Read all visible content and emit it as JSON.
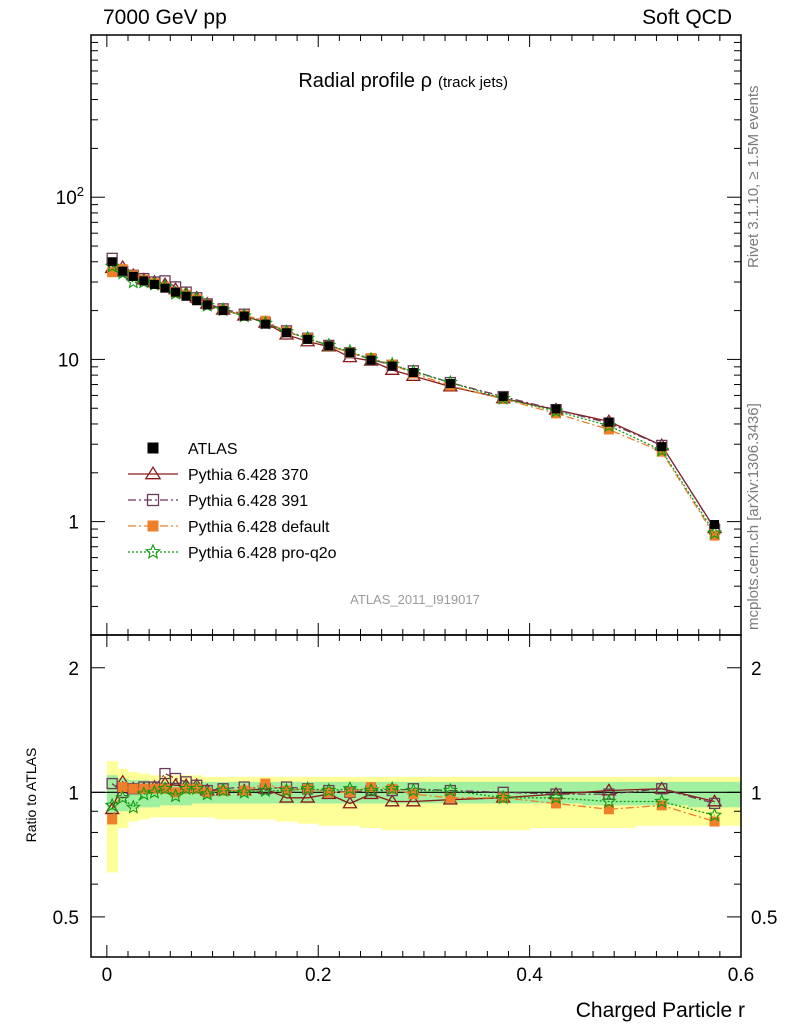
{
  "header": {
    "left": "7000 GeV pp",
    "right": "Soft QCD"
  },
  "side_labels": {
    "top": "Rivet 3.1.10, ≥ 1.5M events",
    "bottom": "mcplots.cern.ch [arXiv:1306.3436]"
  },
  "chart_data": [
    {
      "type": "scatter",
      "title_main": "Radial profile ρ",
      "title_sub": "(track jets)",
      "analysis_id": "ATLAS_2011_I919017",
      "xlabel": "Charged Particle r",
      "ylabel": "",
      "yscale": "log",
      "xlim": [
        -0.015,
        0.6
      ],
      "ylim": [
        0.2,
        1000
      ],
      "ytick_labels": [
        "1",
        "10",
        "10^2"
      ],
      "legend_placement": "lower-left",
      "x": [
        0.005,
        0.015,
        0.025,
        0.035,
        0.045,
        0.055,
        0.065,
        0.075,
        0.085,
        0.095,
        0.11,
        0.13,
        0.15,
        0.17,
        0.19,
        0.21,
        0.23,
        0.25,
        0.27,
        0.29,
        0.325,
        0.375,
        0.425,
        0.475,
        0.525,
        0.575
      ],
      "series": [
        {
          "name": "ATLAS",
          "color": "#000000",
          "marker": "filled-square",
          "values": [
            40,
            35,
            32.5,
            30.5,
            29,
            27.5,
            26,
            24.5,
            23,
            21.7,
            20,
            18.5,
            16.5,
            14.6,
            13.3,
            12.1,
            11,
            9.9,
            9.1,
            8.3,
            7.1,
            5.9,
            4.95,
            4.1,
            2.9,
            0.96
          ]
        },
        {
          "name": "Pythia 6.428 370",
          "color": "#8b1a1a",
          "marker": "open-triangle",
          "line": "solid",
          "values": [
            36.5,
            37,
            33,
            31,
            30,
            29,
            27,
            25.5,
            24,
            22,
            20.2,
            18.6,
            16.8,
            14.2,
            12.9,
            12,
            10.3,
            9.8,
            8.6,
            7.9,
            6.8,
            5.75,
            4.9,
            4.15,
            2.95,
            0.91
          ]
        },
        {
          "name": "Pythia 6.428 391",
          "color": "#6b3a5a",
          "marker": "open-square",
          "line": "dashdot",
          "values": [
            42,
            35,
            33,
            31.5,
            30,
            30.5,
            28,
            26,
            24,
            22,
            20.5,
            19,
            16.8,
            15,
            13.5,
            12.2,
            11,
            10,
            9.2,
            8.5,
            7.2,
            5.9,
            4.9,
            4.05,
            2.95,
            0.9
          ]
        },
        {
          "name": "Pythia 6.428 default",
          "color": "#f07f2a",
          "marker": "filled-square",
          "line": "dashdot",
          "values": [
            34.5,
            36,
            33,
            31,
            29.5,
            28,
            26,
            25,
            23.5,
            21.8,
            20.2,
            18.7,
            17.3,
            14.8,
            13.5,
            12.1,
            11,
            10.2,
            9.3,
            8.2,
            6.9,
            5.7,
            4.65,
            3.7,
            2.7,
            0.82
          ]
        },
        {
          "name": "Pythia 6.428 pro-q2o",
          "color": "#109a10",
          "marker": "star",
          "line": "dotted",
          "values": [
            37.5,
            34,
            30,
            30,
            29,
            28,
            25.5,
            25,
            23.5,
            21.5,
            20.2,
            18.5,
            16.7,
            14.8,
            13.5,
            12.2,
            11.2,
            10,
            9.3,
            8.4,
            7.2,
            5.75,
            4.8,
            3.9,
            2.75,
            0.85
          ]
        }
      ]
    },
    {
      "type": "line",
      "ylabel": "Ratio to ATLAS",
      "xlabel": "Charged Particle r",
      "yscale": "log",
      "xlim": [
        -0.015,
        0.6
      ],
      "ylim": [
        0.4,
        2.4
      ],
      "ytick_labels": [
        "0.5",
        "1",
        "2"
      ],
      "xtick_labels": [
        "0",
        "0.2",
        "0.4",
        "0.6"
      ],
      "reference_line": 1,
      "band_inner": {
        "color": "#a0f0a0",
        "lo": [
          0.88,
          0.9,
          0.91,
          0.92,
          0.92,
          0.93,
          0.93,
          0.93,
          0.94,
          0.94,
          0.94,
          0.94,
          0.94,
          0.94,
          0.94,
          0.94,
          0.94,
          0.94,
          0.94,
          0.94,
          0.94,
          0.94,
          0.94,
          0.93,
          0.93,
          0.92
        ],
        "hi": [
          1.1,
          1.08,
          1.07,
          1.07,
          1.06,
          1.06,
          1.06,
          1.06,
          1.06,
          1.06,
          1.06,
          1.06,
          1.06,
          1.06,
          1.06,
          1.06,
          1.06,
          1.06,
          1.06,
          1.06,
          1.06,
          1.06,
          1.06,
          1.06,
          1.06,
          1.06
        ]
      },
      "band_outer": {
        "color": "#ffff99",
        "lo": [
          0.64,
          0.82,
          0.85,
          0.86,
          0.87,
          0.87,
          0.87,
          0.87,
          0.87,
          0.87,
          0.86,
          0.86,
          0.86,
          0.85,
          0.84,
          0.83,
          0.83,
          0.82,
          0.81,
          0.81,
          0.81,
          0.81,
          0.82,
          0.82,
          0.83,
          0.83
        ],
        "hi": [
          1.19,
          1.14,
          1.12,
          1.11,
          1.1,
          1.1,
          1.1,
          1.1,
          1.1,
          1.09,
          1.09,
          1.09,
          1.09,
          1.09,
          1.09,
          1.09,
          1.09,
          1.09,
          1.09,
          1.09,
          1.09,
          1.09,
          1.09,
          1.09,
          1.09,
          1.09
        ]
      },
      "series": [
        {
          "name": "Pythia 6.428 370",
          "values": [
            0.91,
            1.06,
            1.02,
            1.02,
            1.03,
            1.05,
            1.04,
            1.04,
            1.04,
            1.01,
            1.01,
            1.01,
            1.02,
            0.97,
            0.97,
            0.99,
            0.94,
            0.99,
            0.95,
            0.95,
            0.96,
            0.97,
            0.99,
            1.01,
            1.02,
            0.95
          ]
        },
        {
          "name": "Pythia 6.428 391",
          "values": [
            1.05,
            1.0,
            1.02,
            1.03,
            1.03,
            1.11,
            1.08,
            1.06,
            1.04,
            1.01,
            1.02,
            1.03,
            1.02,
            1.03,
            1.02,
            1.01,
            1.0,
            1.01,
            1.01,
            1.02,
            1.01,
            1.0,
            0.99,
            0.99,
            1.02,
            0.94
          ]
        },
        {
          "name": "Pythia 6.428 default",
          "values": [
            0.86,
            1.03,
            1.02,
            1.02,
            1.02,
            1.02,
            1.0,
            1.02,
            1.02,
            1.0,
            1.01,
            1.01,
            1.05,
            1.01,
            1.02,
            1.0,
            1.0,
            1.03,
            1.02,
            0.99,
            0.97,
            0.97,
            0.94,
            0.91,
            0.93,
            0.85
          ]
        },
        {
          "name": "Pythia 6.428 pro-q2o",
          "values": [
            0.93,
            0.97,
            0.92,
            0.99,
            1.0,
            1.02,
            0.98,
            1.02,
            1.02,
            0.99,
            1.01,
            1.0,
            1.01,
            1.01,
            1.02,
            1.01,
            1.02,
            1.01,
            1.02,
            1.01,
            1.01,
            0.97,
            0.97,
            0.95,
            0.95,
            0.88
          ]
        }
      ]
    }
  ]
}
